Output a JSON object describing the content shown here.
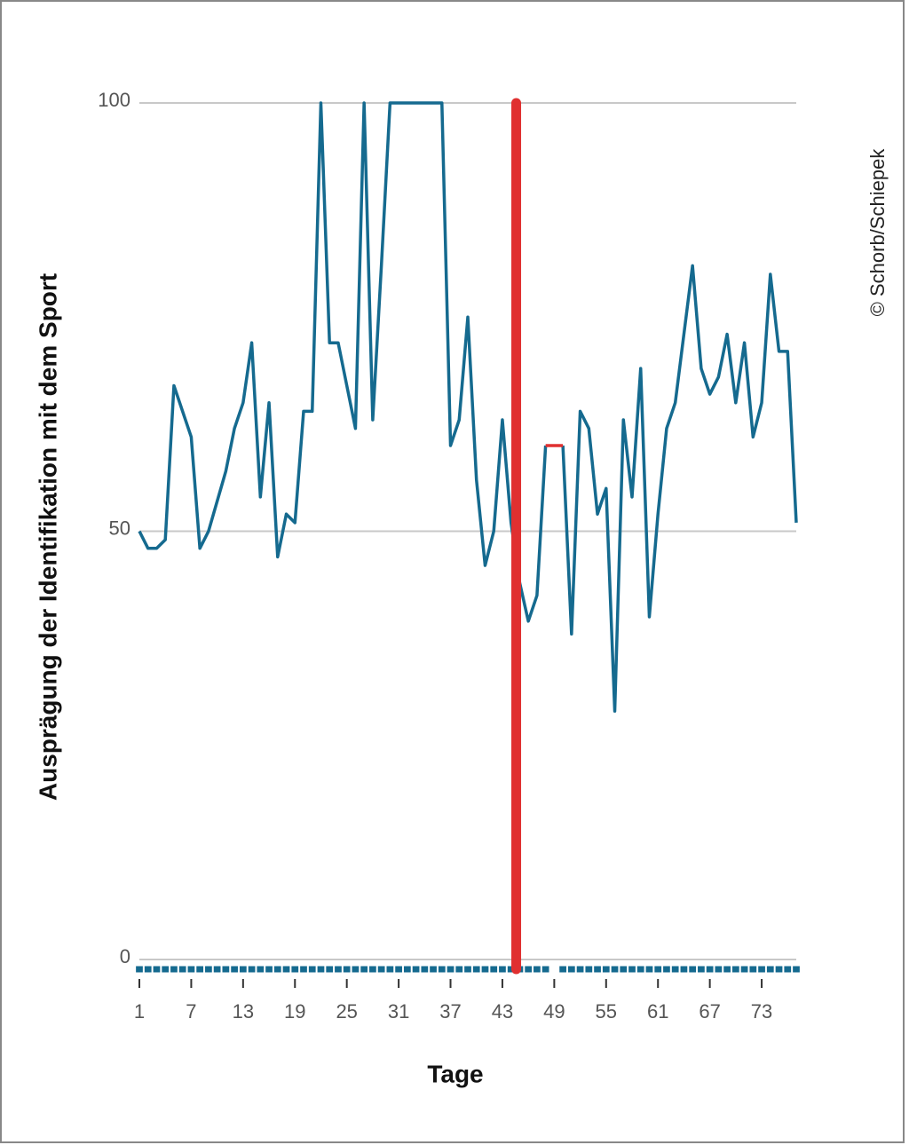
{
  "chart_data": {
    "type": "line",
    "x_label": "Tage",
    "y_label": "Ausprägung der Identifikation mit dem Sport",
    "credit": "© Schorb/Schiepek",
    "x": [
      1,
      2,
      3,
      4,
      5,
      6,
      7,
      8,
      9,
      10,
      11,
      12,
      13,
      14,
      15,
      16,
      17,
      18,
      19,
      20,
      21,
      22,
      23,
      24,
      25,
      26,
      27,
      28,
      29,
      30,
      31,
      32,
      33,
      34,
      35,
      36,
      37,
      38,
      39,
      40,
      41,
      42,
      43,
      44,
      45,
      46,
      47,
      48,
      49,
      50,
      51,
      52,
      53,
      54,
      55,
      56,
      57,
      58,
      59,
      60,
      61,
      62,
      63,
      64,
      65,
      66,
      67,
      68,
      69,
      70,
      71,
      72,
      73,
      74,
      75,
      76,
      77
    ],
    "series": [
      {
        "color": "#156a8f",
        "values": [
          50,
          48,
          48,
          49,
          67,
          64,
          61,
          48,
          50,
          53.5,
          57,
          62,
          65,
          72,
          54,
          65,
          47,
          52,
          51,
          64,
          64,
          100,
          72,
          72,
          67,
          62,
          100,
          63,
          81,
          100,
          100,
          100,
          100,
          100,
          100,
          100,
          60,
          63,
          75,
          56,
          46,
          50,
          63,
          51,
          44,
          39.5,
          42.5,
          60,
          null,
          60,
          38,
          64,
          62,
          52,
          55,
          29,
          63,
          54,
          69,
          40,
          52,
          62,
          65,
          73,
          81,
          69,
          66,
          68,
          73,
          65,
          72,
          61,
          65,
          80,
          71,
          71,
          51
        ]
      },
      {
        "color": "#e03030",
        "values": [
          null,
          null,
          null,
          null,
          null,
          null,
          null,
          null,
          null,
          null,
          null,
          null,
          null,
          null,
          null,
          null,
          null,
          null,
          null,
          null,
          null,
          null,
          null,
          null,
          null,
          null,
          null,
          null,
          null,
          null,
          null,
          null,
          null,
          null,
          null,
          null,
          null,
          null,
          null,
          null,
          null,
          null,
          null,
          null,
          null,
          null,
          null,
          60,
          60,
          60,
          null,
          null,
          null,
          null,
          null,
          null,
          null,
          null,
          null,
          null,
          null,
          null,
          null,
          null,
          null,
          null,
          null,
          null,
          null,
          null,
          null,
          null,
          null,
          null,
          null,
          null,
          null
        ]
      }
    ],
    "vline": {
      "x": 44.6,
      "color": "#e03030"
    },
    "xlim": [
      1,
      77
    ],
    "xticks": [
      1,
      7,
      13,
      19,
      25,
      31,
      37,
      43,
      49,
      55,
      61,
      67,
      73
    ],
    "ylim": [
      0,
      100
    ],
    "yticks": [
      0,
      50,
      100
    ],
    "grid": true
  }
}
